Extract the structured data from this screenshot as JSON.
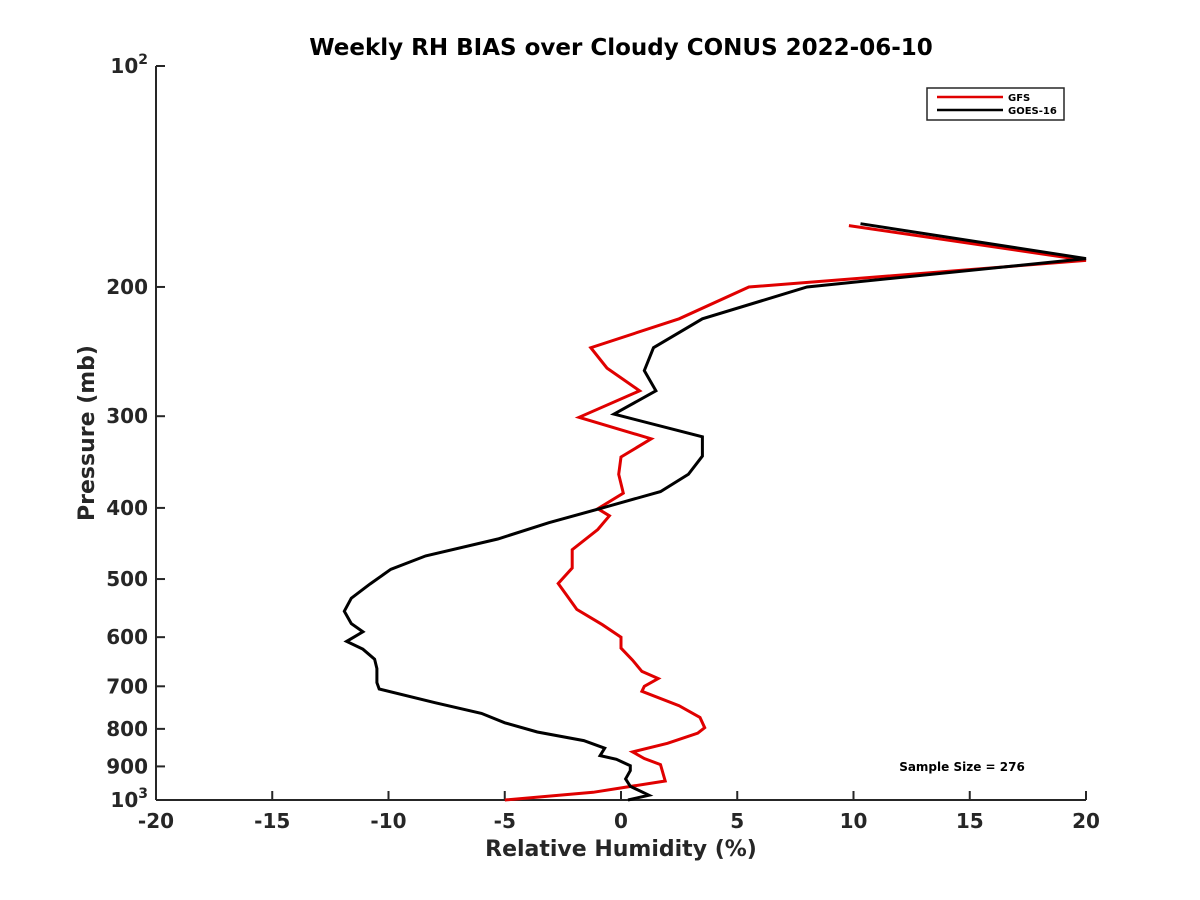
{
  "chart_data": {
    "type": "line",
    "title": "Weekly RH BIAS over Cloudy CONUS 2022-06-10",
    "xlabel": "Relative Humidity (%)",
    "ylabel": "Pressure (mb)",
    "xlim": [
      -20,
      20
    ],
    "ylim": [
      100,
      1000
    ],
    "y_scale": "log",
    "y_reversed": true,
    "x_ticks": [
      "-20",
      "-15",
      "-10",
      "-5",
      "0",
      "5",
      "10",
      "15",
      "20"
    ],
    "y_ticks": [
      {
        "value": 100,
        "base": "10",
        "exp": "2"
      },
      {
        "value": 200,
        "base": "200",
        "exp": ""
      },
      {
        "value": 300,
        "base": "300",
        "exp": ""
      },
      {
        "value": 400,
        "base": "400",
        "exp": ""
      },
      {
        "value": 500,
        "base": "500",
        "exp": ""
      },
      {
        "value": 600,
        "base": "600",
        "exp": ""
      },
      {
        "value": 700,
        "base": "700",
        "exp": ""
      },
      {
        "value": 800,
        "base": "800",
        "exp": ""
      },
      {
        "value": 900,
        "base": "900",
        "exp": ""
      },
      {
        "value": 1000,
        "base": "10",
        "exp": "3"
      }
    ],
    "grid": false,
    "legend_position": "top-right",
    "annotation": "Sample Size = 276",
    "series": [
      {
        "name": "GFS",
        "color": "#e00000",
        "points": [
          [
            9.8,
            165
          ],
          [
            20,
            184
          ],
          [
            5.5,
            200
          ],
          [
            2.5,
            221
          ],
          [
            -1.3,
            242
          ],
          [
            -0.6,
            258
          ],
          [
            0.8,
            277
          ],
          [
            -1.8,
            301
          ],
          [
            1.3,
            322
          ],
          [
            0.0,
            341
          ],
          [
            -0.1,
            360
          ],
          [
            0.1,
            382
          ],
          [
            -1.0,
            401
          ],
          [
            -0.5,
            410
          ],
          [
            -1.0,
            428
          ],
          [
            -2.1,
            456
          ],
          [
            -2.1,
            483
          ],
          [
            -2.7,
            507
          ],
          [
            -2.3,
            528
          ],
          [
            -1.9,
            550
          ],
          [
            -0.8,
            577
          ],
          [
            0.0,
            600
          ],
          [
            0.0,
            621
          ],
          [
            0.5,
            645
          ],
          [
            0.9,
            668
          ],
          [
            1.6,
            683
          ],
          [
            1.0,
            700
          ],
          [
            0.9,
            711
          ],
          [
            2.5,
            744
          ],
          [
            3.4,
            772
          ],
          [
            3.6,
            797
          ],
          [
            3.3,
            811
          ],
          [
            2.0,
            837
          ],
          [
            0.5,
            860
          ],
          [
            1.0,
            878
          ],
          [
            1.7,
            895
          ],
          [
            1.9,
            942
          ],
          [
            -1.2,
            976
          ],
          [
            -5.0,
            1000
          ]
        ]
      },
      {
        "name": "GOES-16",
        "color": "#000000",
        "points": [
          [
            10.3,
            164
          ],
          [
            20,
            183
          ],
          [
            8.0,
            200
          ],
          [
            3.5,
            221
          ],
          [
            1.4,
            242
          ],
          [
            1.0,
            260
          ],
          [
            1.5,
            277
          ],
          [
            -0.3,
            298
          ],
          [
            3.5,
            320
          ],
          [
            3.5,
            340
          ],
          [
            2.9,
            360
          ],
          [
            1.7,
            380
          ],
          [
            -0.8,
            400
          ],
          [
            -3.1,
            419
          ],
          [
            -5.3,
            441
          ],
          [
            -8.4,
            465
          ],
          [
            -9.9,
            485
          ],
          [
            -10.8,
            508
          ],
          [
            -11.6,
            531
          ],
          [
            -11.9,
            553
          ],
          [
            -11.6,
            575
          ],
          [
            -11.1,
            590
          ],
          [
            -11.8,
            608
          ],
          [
            -11.1,
            623
          ],
          [
            -10.6,
            643
          ],
          [
            -10.5,
            662
          ],
          [
            -10.5,
            692
          ],
          [
            -10.4,
            706
          ],
          [
            -8.0,
            737
          ],
          [
            -6.0,
            762
          ],
          [
            -5.0,
            785
          ],
          [
            -3.6,
            808
          ],
          [
            -1.6,
            830
          ],
          [
            -0.7,
            850
          ],
          [
            -0.9,
            870
          ],
          [
            -0.2,
            880
          ],
          [
            0.4,
            898
          ],
          [
            0.4,
            912
          ],
          [
            0.2,
            936
          ],
          [
            0.4,
            958
          ],
          [
            1.2,
            985
          ],
          [
            0.3,
            1000
          ]
        ]
      }
    ]
  }
}
